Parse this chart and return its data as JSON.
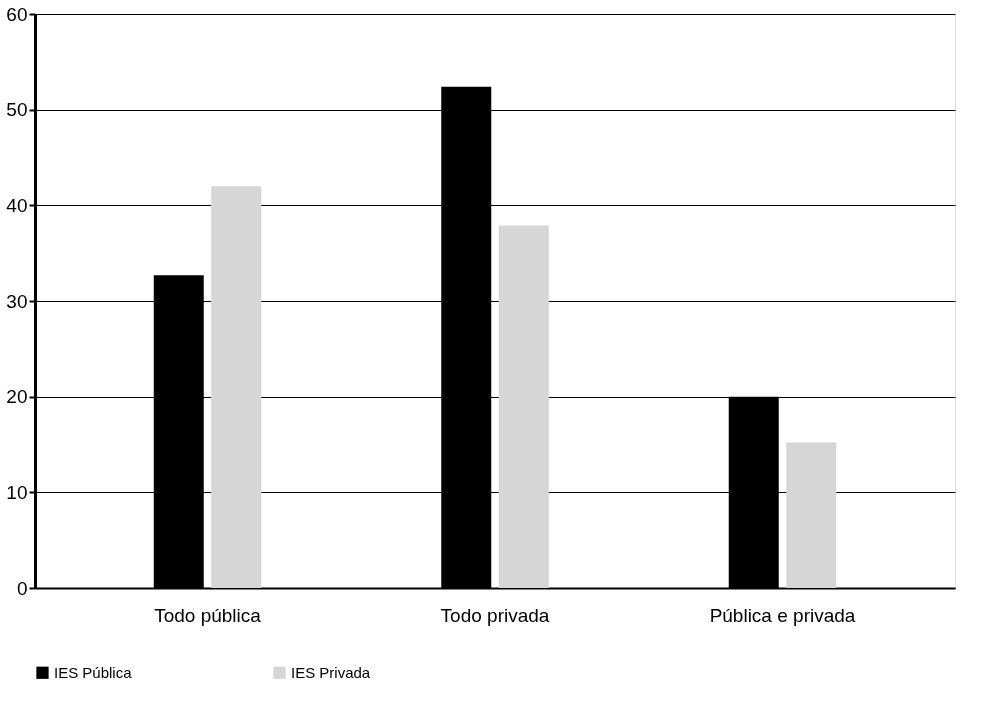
{
  "chart_data": {
    "type": "bar",
    "categories": [
      "Todo pública",
      "Todo privada",
      "Pública e privada"
    ],
    "series": [
      {
        "name": "IES Pública",
        "color": "#000000",
        "values": [
          32.7,
          52.4,
          20.0
        ]
      },
      {
        "name": "IES Privada",
        "color": "#d6d6d6",
        "values": [
          42.0,
          37.9,
          15.2
        ]
      }
    ],
    "ylim": [
      0,
      60
    ],
    "yticks": [
      0,
      10,
      20,
      30,
      40,
      50,
      60
    ],
    "grid": "y",
    "legend": "bottom"
  }
}
